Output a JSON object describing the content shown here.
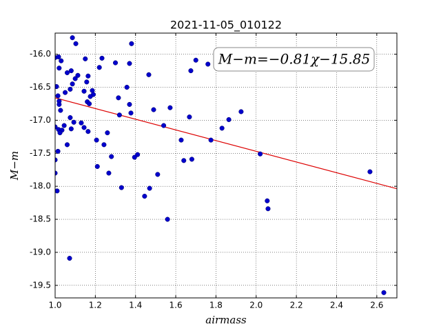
{
  "chart_data": {
    "type": "scatter",
    "title": "2021-11-05_010122",
    "xlabel": "airmass",
    "ylabel": "M−m",
    "annotation": "M−m=−0.81χ−15.85",
    "fit": {
      "slope": -0.81,
      "intercept": -15.85,
      "color": "#dd0000"
    },
    "series": [
      {
        "color": "#0000cc",
        "x": [
          1.086,
          1.103,
          1.38,
          1.0,
          1.017,
          1.03,
          1.15,
          1.233,
          1.3,
          1.37,
          1.7,
          1.76,
          1.02,
          1.22,
          1.08,
          1.06,
          1.675,
          1.466,
          1.113,
          1.1,
          1.164,
          1.157,
          1.007,
          1.086,
          1.357,
          1.075,
          1.05,
          1.144,
          1.185,
          1.19,
          1.014,
          1.175,
          1.315,
          1.16,
          1.02,
          1.17,
          1.37,
          1.02,
          1.572,
          1.49,
          1.925,
          1.027,
          1.377,
          1.32,
          1.668,
          1.075,
          1.864,
          1.093,
          1.13,
          1.045,
          1.0,
          1.144,
          1.54,
          1.83,
          1.08,
          1.017,
          1.034,
          1.164,
          1.26,
          1.024,
          1.206,
          1.775,
          1.627,
          1.06,
          1.243,
          1.014,
          2.02,
          1.41,
          1.28,
          1.395,
          1.68,
          1.64,
          1.0,
          1.21,
          2.566,
          1.0,
          1.267,
          1.51,
          1.33,
          1.47,
          1.01,
          1.445,
          2.055,
          2.059,
          1.559,
          1.072,
          2.635
        ],
        "values": [
          -15.75,
          -15.84,
          -15.84,
          -16.05,
          -16.04,
          -16.1,
          -16.07,
          -16.06,
          -16.13,
          -16.14,
          -16.09,
          -16.15,
          -16.21,
          -16.2,
          -16.25,
          -16.28,
          -16.25,
          -16.31,
          -16.32,
          -16.37,
          -16.33,
          -16.42,
          -16.49,
          -16.45,
          -16.5,
          -16.53,
          -16.58,
          -16.56,
          -16.55,
          -16.61,
          -16.63,
          -16.64,
          -16.66,
          -16.72,
          -16.71,
          -16.75,
          -16.76,
          -16.76,
          -16.81,
          -16.84,
          -16.87,
          -16.85,
          -16.89,
          -16.92,
          -16.95,
          -16.96,
          -16.99,
          -17.03,
          -17.04,
          -17.08,
          -17.1,
          -17.11,
          -17.08,
          -17.12,
          -17.13,
          -17.14,
          -17.15,
          -17.17,
          -17.19,
          -17.19,
          -17.3,
          -17.3,
          -17.3,
          -17.37,
          -17.37,
          -17.47,
          -17.51,
          -17.52,
          -17.55,
          -17.56,
          -17.59,
          -17.61,
          -17.6,
          -17.7,
          -17.78,
          -17.8,
          -17.8,
          -17.82,
          -18.02,
          -18.03,
          -18.07,
          -18.15,
          -18.22,
          -18.34,
          -18.5,
          -19.09,
          -19.61
        ]
      }
    ],
    "xlim": [
      1.0,
      2.7
    ],
    "xticks": [
      {
        "value": 1.0,
        "label": "1.0"
      },
      1.2,
      1.4,
      1.6,
      1.8,
      {
        "value": 2.0,
        "label": "2.0"
      },
      2.2,
      2.4,
      2.6
    ],
    "ylim": [
      -19.69,
      -15.68
    ],
    "yticks": [
      {
        "value": -16.0,
        "label": "-16.0"
      },
      -16.5,
      {
        "value": -17.0,
        "label": "-17.0"
      },
      -17.5,
      {
        "value": -18.0,
        "label": "-18.0"
      },
      -18.5,
      {
        "value": -19.0,
        "label": "-19.0"
      },
      -19.5
    ],
    "grid": true
  }
}
